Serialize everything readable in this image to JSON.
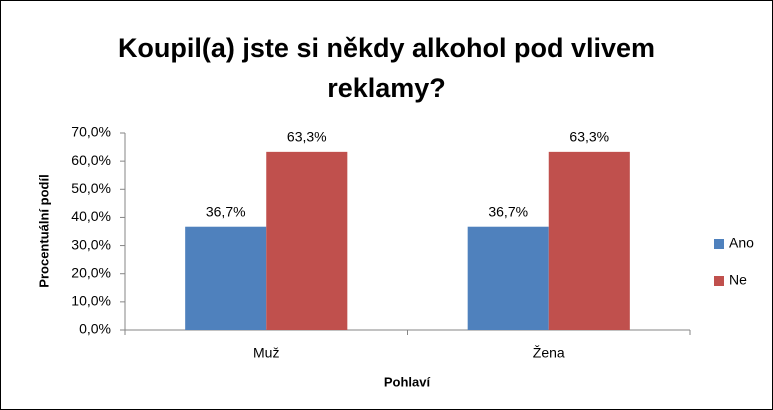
{
  "chart_data": {
    "type": "bar",
    "title": "Koupil(a) jste si někdy alkohol pod vlivem reklamy?",
    "x_label": "Pohlaví",
    "y_label": "Procentuální podíl",
    "categories": [
      "Muž",
      "Žena"
    ],
    "series": [
      {
        "name": "Ano",
        "color": "#4f81bd",
        "values": [
          36.7,
          36.7
        ],
        "value_labels": [
          "36,7%",
          "36,7%"
        ]
      },
      {
        "name": "Ne",
        "color": "#c0504d",
        "values": [
          63.3,
          63.3
        ],
        "value_labels": [
          "63,3%",
          "63,3%"
        ]
      }
    ],
    "ylim": [
      0,
      70
    ],
    "yticks": [
      {
        "value": 0,
        "label": "0,0%"
      },
      {
        "value": 10,
        "label": "10,0%"
      },
      {
        "value": 20,
        "label": "20,0%"
      },
      {
        "value": 30,
        "label": "30,0%"
      },
      {
        "value": 40,
        "label": "40,0%"
      },
      {
        "value": 50,
        "label": "50,0%"
      },
      {
        "value": 60,
        "label": "60,0%"
      },
      {
        "value": 70,
        "label": "70,0%"
      }
    ],
    "grid": false,
    "legend": "right"
  }
}
